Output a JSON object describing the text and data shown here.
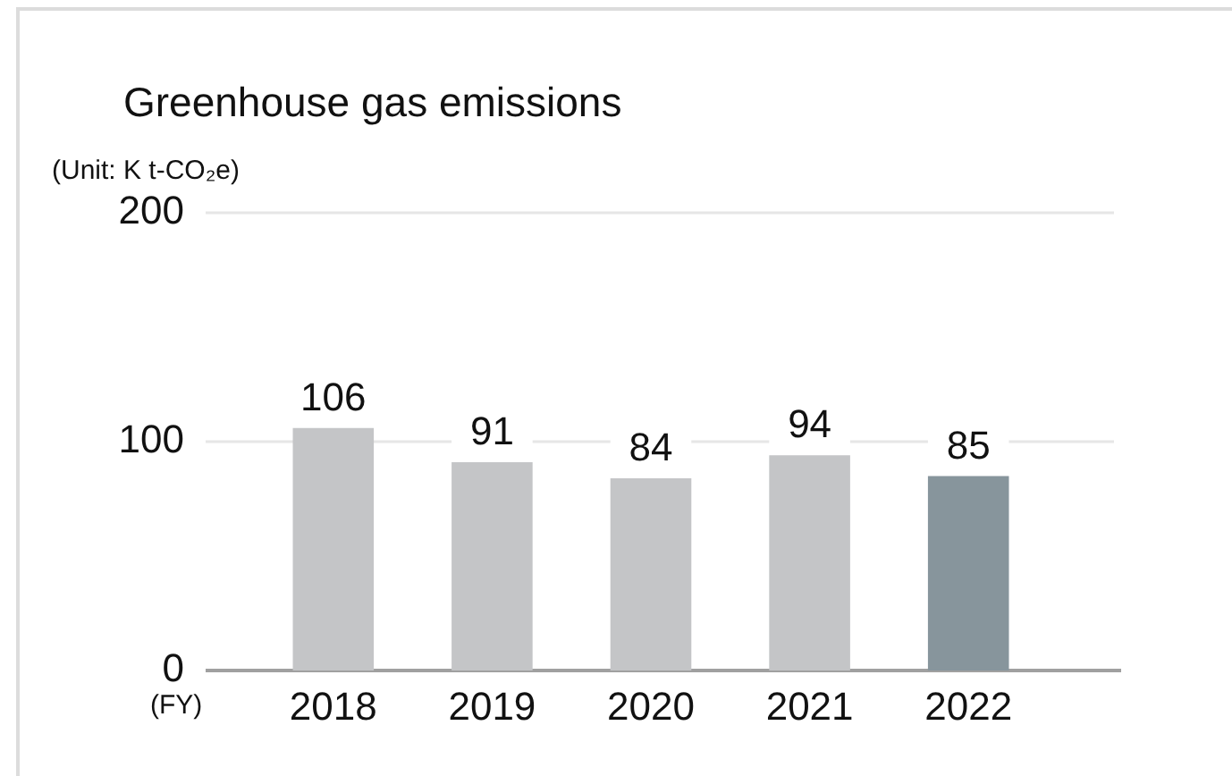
{
  "chart_data": {
    "type": "bar",
    "title": "Greenhouse gas emissions",
    "ylabel": "(Unit: K t-CO₂e)",
    "xlabel": "(FY)",
    "categories": [
      "2018",
      "2019",
      "2020",
      "2021",
      "2022"
    ],
    "values": [
      106,
      91,
      84,
      94,
      85
    ],
    "colors": [
      "#c4c5c7",
      "#c4c5c7",
      "#c4c5c7",
      "#c4c5c7",
      "#87959c"
    ],
    "ylim": [
      0,
      200
    ],
    "yticks": [
      0,
      100,
      200
    ],
    "grid": "y",
    "data_labels": true
  }
}
